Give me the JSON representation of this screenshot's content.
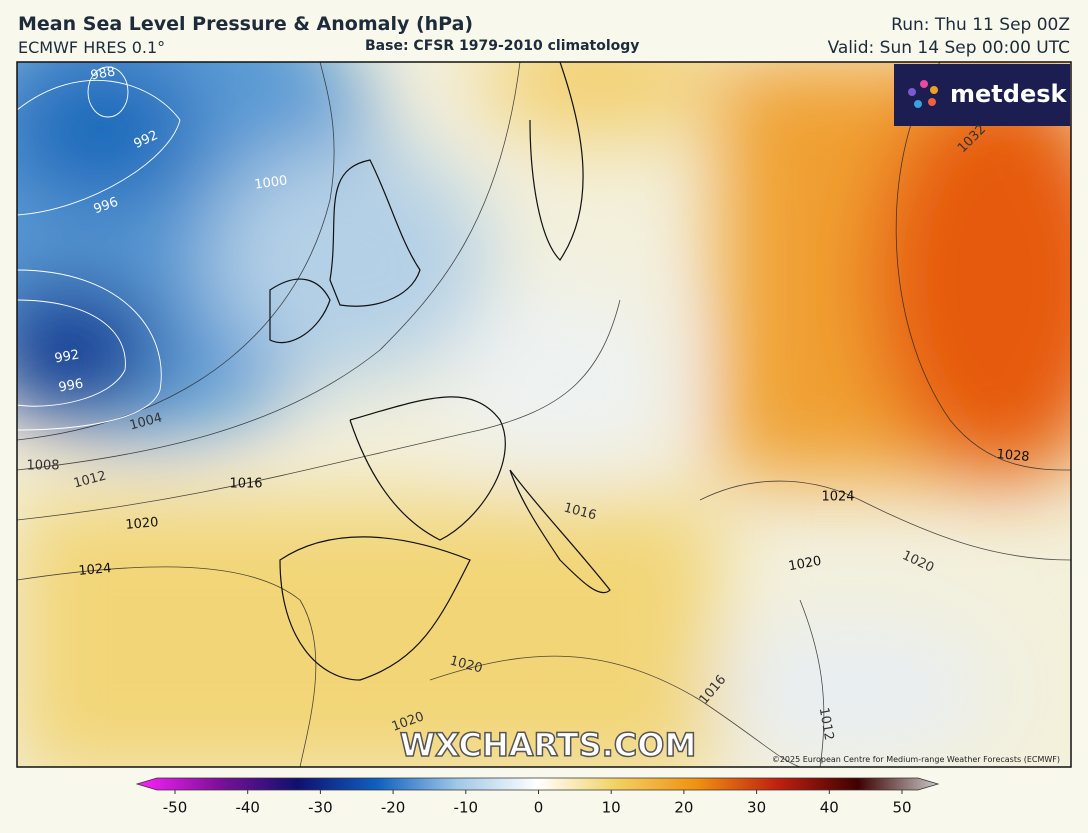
{
  "header": {
    "title": "Mean Sea Level Pressure & Anomaly (hPa)",
    "model": "ECMWF HRES 0.1°",
    "base": "Base: CFSR 1979-2010 climatology",
    "run": "Run: Thu 11 Sep 00Z",
    "valid": "Valid: Sun 14 Sep 00:00 UTC"
  },
  "map": {
    "contour_labels": [
      988,
      992,
      1000,
      996,
      992,
      996,
      1004,
      1008,
      1012,
      1016,
      1020,
      1024,
      1032,
      1028,
      1024,
      1020,
      1020,
      1016,
      1020,
      1020,
      1016,
      1012
    ],
    "logo": "metdesk",
    "watermark": "WXCHARTS.COM",
    "copyright": "©2025 European Centre for Medium-range Weather Forecasts (ECMWF)"
  },
  "colorbar": {
    "ticks": [
      -50,
      -40,
      -30,
      -20,
      -10,
      0,
      10,
      20,
      30,
      40,
      50
    ]
  }
}
